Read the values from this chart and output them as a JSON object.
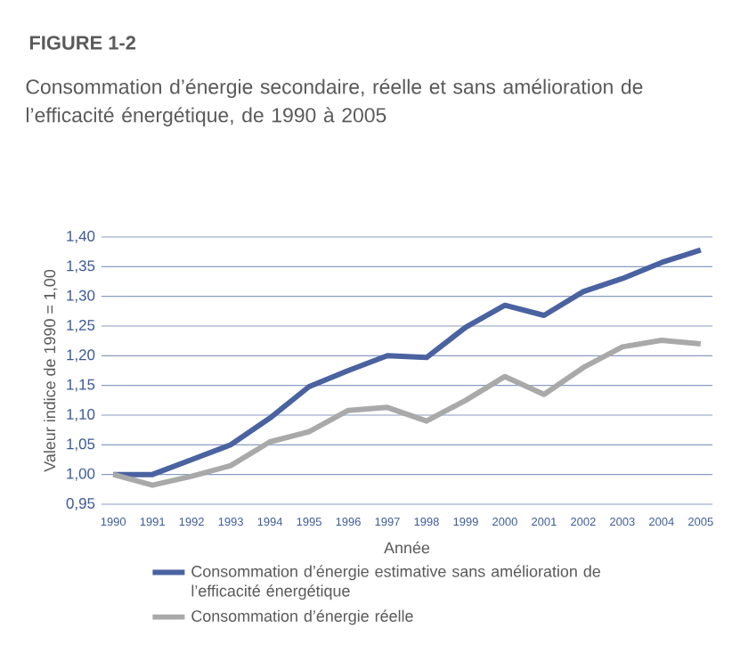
{
  "chart_data": {
    "type": "line",
    "title": "FIGURE 1-2",
    "subtitle": "Consommation d’énergie secondaire, réelle et sans amélioration de l’efficacité énergétique, de 1990 à 2005",
    "xlabel": "Année",
    "ylabel": "Valeur indice de 1990 = 1,00",
    "categories": [
      "1990",
      "1991",
      "1992",
      "1993",
      "1994",
      "1995",
      "1996",
      "1997",
      "1998",
      "1999",
      "2000",
      "2001",
      "2002",
      "2003",
      "2004",
      "2005"
    ],
    "series": [
      {
        "name": "Consommation d’énergie estimative sans amélioration de l’efficacité énergétique",
        "color": "#4a62a0",
        "values": [
          1.0,
          1.0,
          1.025,
          1.05,
          1.095,
          1.148,
          1.175,
          1.2,
          1.197,
          1.248,
          1.285,
          1.268,
          1.308,
          1.33,
          1.357,
          1.378
        ]
      },
      {
        "name": "Consommation d’énergie réelle",
        "color": "#a9a9a9",
        "values": [
          1.0,
          0.982,
          0.997,
          1.015,
          1.055,
          1.072,
          1.108,
          1.113,
          1.09,
          1.125,
          1.165,
          1.135,
          1.18,
          1.215,
          1.226,
          1.22
        ]
      }
    ],
    "ylim": [
      0.95,
      1.4
    ],
    "yticks": [
      {
        "value": 0.95,
        "label": "0,95"
      },
      {
        "value": 1.0,
        "label": "1,00"
      },
      {
        "value": 1.05,
        "label": "1,05"
      },
      {
        "value": 1.1,
        "label": "1,10"
      },
      {
        "value": 1.15,
        "label": "1,15"
      },
      {
        "value": 1.2,
        "label": "1,20"
      },
      {
        "value": 1.25,
        "label": "1,25"
      },
      {
        "value": 1.3,
        "label": "1,30"
      },
      {
        "value": 1.35,
        "label": "1,35"
      },
      {
        "value": 1.4,
        "label": "1,40"
      }
    ],
    "grid": "y",
    "legend": "bottom",
    "marker": "none",
    "line_style": "solid"
  }
}
